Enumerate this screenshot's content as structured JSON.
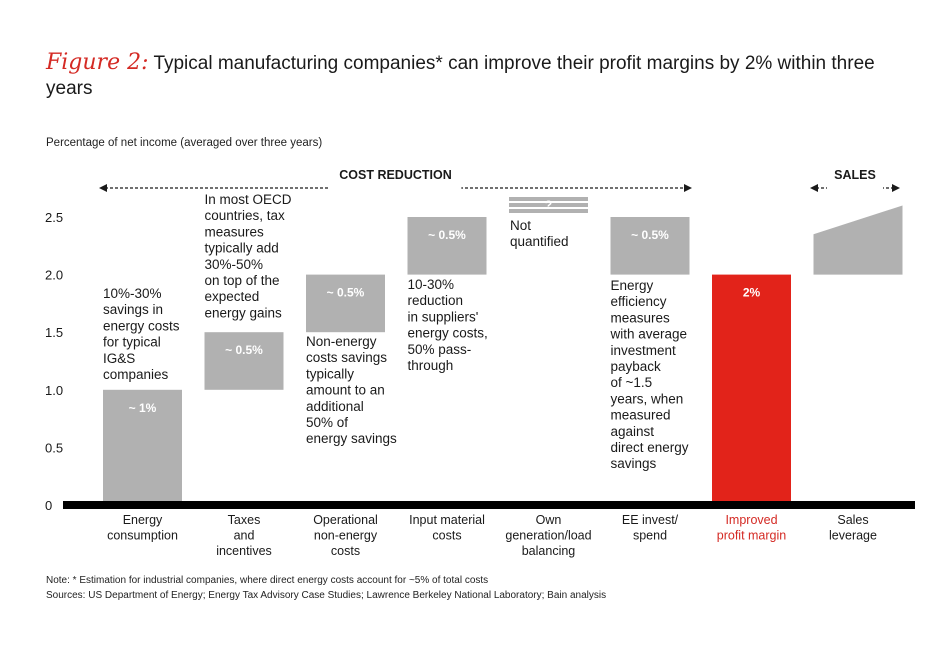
{
  "header": {
    "figure_label": "Figure 2:",
    "title": "Typical manufacturing companies* can improve their profit margins by 2% within three years"
  },
  "chart_data": {
    "type": "bar",
    "ylabel": "Percentage of net income (averaged over three years)",
    "ylim": [
      0,
      2.5
    ],
    "yticks": [
      {
        "v": 0,
        "t": "0"
      },
      {
        "v": 0.5,
        "t": "0.5"
      },
      {
        "v": 1.0,
        "t": "1.0"
      },
      {
        "v": 1.5,
        "t": "1.5"
      },
      {
        "v": 2.0,
        "t": "2.0"
      },
      {
        "v": 2.5,
        "t": "2.5"
      }
    ],
    "sections": [
      {
        "label": "COST REDUCTION",
        "from": 0,
        "to": 5
      },
      {
        "label": "SALES",
        "from": 7,
        "to": 7
      }
    ],
    "bars": [
      {
        "category": [
          "Energy",
          "consumption"
        ],
        "base": 0,
        "value": 1.0,
        "label": "~ 1%",
        "color": "#b1b1b1",
        "annotation": [
          "10%-30%",
          "savings in",
          "energy costs",
          "for typical",
          "IG&S",
          "companies"
        ]
      },
      {
        "category": [
          "Taxes",
          "and",
          "incentives"
        ],
        "base": 1.0,
        "value": 0.5,
        "label": "~ 0.5%",
        "color": "#b1b1b1",
        "annotation": [
          "In most OECD",
          "countries, tax",
          "measures",
          "typically add",
          "30%-50%",
          "on top of the",
          "expected",
          "energy gains"
        ]
      },
      {
        "category": [
          "Operational",
          "non-energy",
          "costs"
        ],
        "base": 1.5,
        "value": 0.5,
        "label": "~ 0.5%",
        "color": "#b1b1b1",
        "annotation": [
          "Non-energy",
          "costs savings",
          "typically",
          "amount to an",
          "additional",
          "50% of",
          "energy savings"
        ]
      },
      {
        "category": [
          "Input material",
          "costs"
        ],
        "base": 2.0,
        "value": 0.5,
        "label": "~ 0.5%",
        "color": "#b1b1b1",
        "annotation": [
          "10-30%",
          "reduction",
          "in suppliers'",
          "energy costs,",
          "50% pass-",
          "through"
        ]
      },
      {
        "category": [
          "Own",
          "generation/load",
          "balancing"
        ],
        "base": 2.5,
        "value": 0,
        "label": "?",
        "color": "#b1b1b1",
        "annotation": [
          "Not",
          "quantified"
        ]
      },
      {
        "category": [
          "EE invest/",
          "spend"
        ],
        "base": 2.0,
        "value": 0.5,
        "label": "~ 0.5%",
        "color": "#b1b1b1",
        "annotation": [
          "Energy",
          "efficiency",
          "measures",
          "with average",
          "investment",
          "payback",
          "of ~1.5",
          "years, when",
          "measured",
          "against",
          "direct energy",
          "savings"
        ]
      },
      {
        "category": [
          "Improved",
          "profit margin"
        ],
        "base": 0,
        "value": 2.0,
        "label": "2%",
        "color": "#e2231a",
        "annotation": []
      },
      {
        "category": [
          "Sales",
          "leverage"
        ],
        "base": 2.0,
        "value": 0.6,
        "label": "",
        "color": "#b1b1b1",
        "annotation": []
      }
    ]
  },
  "notes": {
    "note": "Note: * Estimation for industrial companies, where direct energy costs account for ~5% of total costs",
    "sources": "Sources: US Department of Energy; Energy Tax Advisory Case Studies; Lawrence Berkeley National Laboratory; Bain analysis"
  }
}
